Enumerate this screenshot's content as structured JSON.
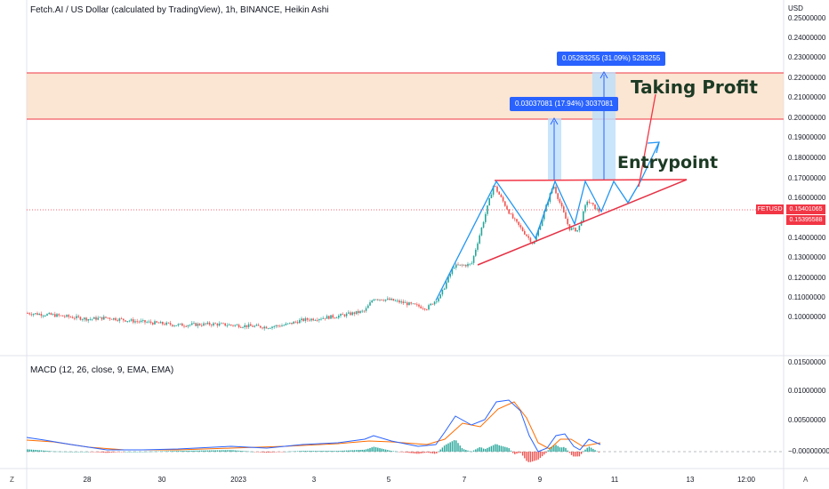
{
  "header": {
    "title": "Fetch.AI / US Dollar (calculated by TradingView), 1h, BINANCE, Heikin Ashi",
    "currency": "USD"
  },
  "price_axis": {
    "ticks": [
      "0.25000000",
      "0.24000000",
      "0.23000000",
      "0.22000000",
      "0.21000000",
      "0.20000000",
      "0.19000000",
      "0.18000000",
      "0.17000000",
      "0.16000000",
      "0.14000000",
      "0.13000000",
      "0.12000000",
      "0.11000000",
      "0.10000000"
    ],
    "symbol_tag": "FETUSD",
    "last_price": "0.15401065",
    "last_price_2": "0.15395588"
  },
  "macd": {
    "title": "MACD (12, 26, close, 9, EMA, EMA)",
    "ticks": [
      "0.01500000",
      "0.01000000",
      "0.00500000",
      "−0.00000000"
    ]
  },
  "time_axis": {
    "ticks": [
      "28",
      "30",
      "2023",
      "3",
      "5",
      "7",
      "9",
      "11",
      "13",
      "12:00"
    ]
  },
  "measurements": {
    "first": "0.03037081 (17.94%) 3037081",
    "second": "0.05283255 (31.09%) 5283255"
  },
  "annotations": {
    "taking_profit": "Taking Profit",
    "entrypoint": "Entrypoint"
  },
  "corners": {
    "left": "Z",
    "right": "A"
  },
  "colors": {
    "bull": "#26a69a",
    "bear": "#ef5350",
    "zone_fill": "#f9dcc4",
    "zone_border": "#f23645",
    "pattern": "#2196f3",
    "support": "#e53245",
    "macd": "#2962ff",
    "signal": "#ff6d00"
  }
}
